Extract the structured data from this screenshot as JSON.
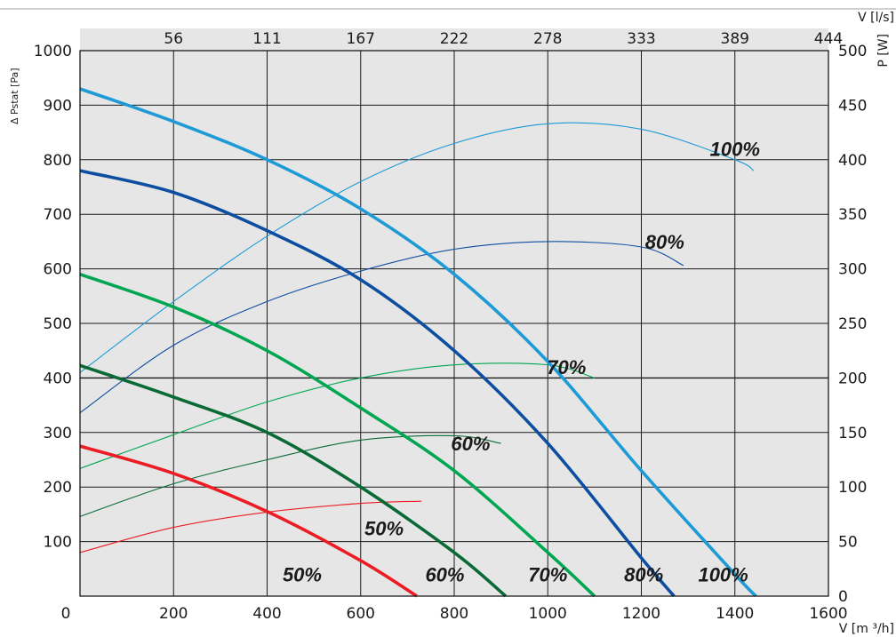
{
  "chart_data": {
    "type": "line",
    "title": "",
    "xlabel": "V [m ³/h]",
    "x2label": "V [l/s]",
    "ylabel": "Δ Pstat [Pa]",
    "y2label": "P [W]",
    "xlim": [
      0,
      1600
    ],
    "ylim": [
      0,
      1000
    ],
    "y2lim": [
      0,
      500
    ],
    "grid": true,
    "x_ticks": [
      0,
      200,
      400,
      600,
      800,
      1000,
      1200,
      1400,
      1600
    ],
    "x_tick_labels": [
      "0",
      "200",
      "400",
      "600",
      "800",
      "1000",
      "1200",
      "1400",
      "1600"
    ],
    "x2_ticks": [
      {
        "label": "56",
        "x": 200
      },
      {
        "label": "111",
        "x": 400
      },
      {
        "label": "167",
        "x": 600
      },
      {
        "label": "222",
        "x": 800
      },
      {
        "label": "278",
        "x": 1000
      },
      {
        "label": "333",
        "x": 1200
      },
      {
        "label": "389",
        "x": 1400
      },
      {
        "label": "444",
        "x": 1600
      }
    ],
    "y_ticks": [
      100,
      200,
      300,
      400,
      500,
      600,
      700,
      800,
      900,
      1000
    ],
    "y_tick_labels": [
      "100",
      "200",
      "300",
      "400",
      "500",
      "600",
      "700",
      "800",
      "900",
      "1000"
    ],
    "y2_ticks": [
      0,
      50,
      100,
      150,
      200,
      250,
      300,
      350,
      400,
      450,
      500
    ],
    "y2_tick_labels": [
      "0",
      "50",
      "100",
      "150",
      "200",
      "250",
      "300",
      "350",
      "400",
      "450",
      "500"
    ],
    "pressure_series": [
      {
        "name": "100%",
        "color": "#1e9ad6",
        "x": [
          0,
          200,
          400,
          600,
          800,
          1000,
          1200,
          1400,
          1445
        ],
        "y": [
          930,
          870,
          800,
          710,
          590,
          430,
          230,
          40,
          0
        ]
      },
      {
        "name": "80%",
        "color": "#0d4ea0",
        "x": [
          0,
          200,
          400,
          600,
          800,
          1000,
          1200,
          1270
        ],
        "y": [
          780,
          740,
          670,
          580,
          450,
          280,
          70,
          0
        ]
      },
      {
        "name": "70%",
        "color": "#00a650",
        "x": [
          0,
          200,
          400,
          600,
          800,
          1000,
          1100
        ],
        "y": [
          590,
          530,
          450,
          345,
          230,
          80,
          0
        ]
      },
      {
        "name": "60%",
        "color": "#0a6a35",
        "x": [
          0,
          200,
          400,
          600,
          800,
          910
        ],
        "y": [
          423,
          365,
          300,
          200,
          80,
          0
        ]
      },
      {
        "name": "50%",
        "color": "#ed1c24",
        "x": [
          0,
          200,
          400,
          600,
          720
        ],
        "y": [
          275,
          225,
          155,
          65,
          0
        ]
      }
    ],
    "power_series": [
      {
        "name": "100%",
        "color": "#1e9ad6",
        "x": [
          0,
          200,
          400,
          600,
          800,
          1000,
          1200,
          1400,
          1440
        ],
        "y": [
          205,
          270,
          330,
          380,
          415,
          433,
          428,
          400,
          390
        ]
      },
      {
        "name": "80%",
        "color": "#0d4ea0",
        "x": [
          0,
          200,
          400,
          600,
          800,
          1000,
          1200,
          1290
        ],
        "y": [
          168,
          230,
          270,
          298,
          318,
          325,
          320,
          303
        ]
      },
      {
        "name": "70%",
        "color": "#00a650",
        "x": [
          0,
          200,
          400,
          600,
          800,
          1000,
          1100
        ],
        "y": [
          117,
          148,
          178,
          200,
          212,
          212,
          200
        ]
      },
      {
        "name": "60%",
        "color": "#0a6a35",
        "x": [
          0,
          200,
          400,
          600,
          800,
          900
        ],
        "y": [
          73,
          103,
          125,
          143,
          147,
          140
        ]
      },
      {
        "name": "50%",
        "color": "#ed1c24",
        "x": [
          0,
          200,
          400,
          600,
          730
        ],
        "y": [
          40,
          63,
          77,
          85,
          87
        ]
      }
    ],
    "labels": [
      {
        "text": "100%",
        "x": 1400,
        "y": 820
      },
      {
        "text": "80%",
        "x": 1250,
        "y": 650
      },
      {
        "text": "70%",
        "x": 1040,
        "y": 420
      },
      {
        "text": "60%",
        "x": 835,
        "y": 280
      },
      {
        "text": "50%",
        "x": 650,
        "y": 125
      },
      {
        "text": "50%",
        "x": 475,
        "y": 40
      },
      {
        "text": "60%",
        "x": 780,
        "y": 40
      },
      {
        "text": "70%",
        "x": 1000,
        "y": 40
      },
      {
        "text": "80%",
        "x": 1205,
        "y": 40
      },
      {
        "text": "100%",
        "x": 1375,
        "y": 40
      }
    ]
  }
}
